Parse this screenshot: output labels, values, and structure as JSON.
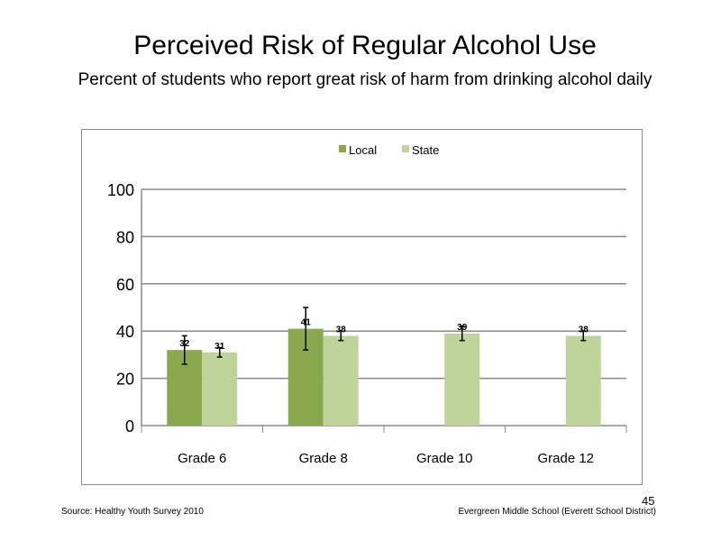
{
  "slide": {
    "title": "Perceived  Risk of Regular  Alcohol  Use",
    "subtitle": "Percent of students  who report great risk of harm  from drinking  alcohol daily",
    "source": "Source: Healthy Youth Survey 2010",
    "school": "Evergreen Middle  School (Everett School District)",
    "page_number": "45"
  },
  "chart_data": {
    "type": "bar",
    "title": "",
    "xlabel": "",
    "ylabel": "",
    "ylim": [
      0,
      100
    ],
    "yticks": [
      0,
      20,
      40,
      60,
      80,
      100
    ],
    "grid": true,
    "legend_position": "top",
    "categories": [
      "Grade 6",
      "Grade 8",
      "Grade 10",
      "Grade 12"
    ],
    "series": [
      {
        "name": "Local",
        "color": "#8aa84e",
        "values": [
          32,
          41,
          null,
          null
        ],
        "labels": [
          "32",
          "41",
          "",
          ""
        ],
        "error_low": [
          26,
          32,
          null,
          null
        ],
        "error_high": [
          38,
          50,
          null,
          null
        ]
      },
      {
        "name": "State",
        "color": "#bfd49a",
        "values": [
          31,
          38,
          39,
          38
        ],
        "labels": [
          "31",
          "38",
          "39",
          "38"
        ],
        "error_low": [
          29,
          36,
          36,
          36
        ],
        "error_high": [
          33,
          40,
          42,
          40
        ]
      }
    ]
  }
}
